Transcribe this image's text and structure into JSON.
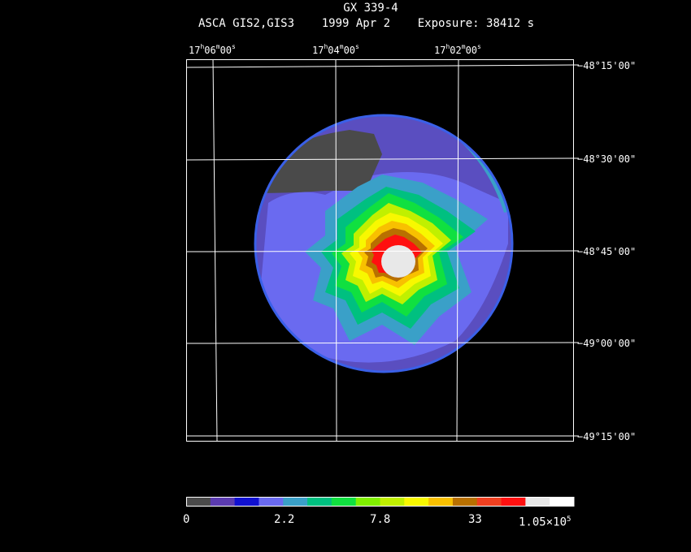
{
  "header": {
    "title": "GX 339-4",
    "instrument": "ASCA GIS2,GIS3",
    "date": "1999 Apr  2",
    "exposure": "Exposure: 38412 s"
  },
  "ra_labels": [
    {
      "h": "17",
      "m": "06",
      "s": "00",
      "hs": "h",
      "ms": "m",
      "ss": "s"
    },
    {
      "h": "17",
      "m": "04",
      "s": "00",
      "hs": "h",
      "ms": "m",
      "ss": "s"
    },
    {
      "h": "17",
      "m": "02",
      "s": "00",
      "hs": "h",
      "ms": "m",
      "ss": "s"
    }
  ],
  "dec_labels": [
    "−48°15'00\"",
    "−48°30'00\"",
    "−48°45'00\"",
    "−49°00'00\"",
    "−49°15'00\""
  ],
  "colorbar": {
    "colors": [
      "#4a4a4a",
      "#5b3bb0",
      "#1010d0",
      "#6a6af0",
      "#3aa0c8",
      "#00c080",
      "#10e040",
      "#80f000",
      "#c0f000",
      "#f8f800",
      "#f8c000",
      "#b87000",
      "#f04020",
      "#ff1010",
      "#e8e8e8",
      "#ffffff"
    ],
    "labels": [
      "0",
      "2.2",
      "7.8",
      "33"
    ],
    "max_mantissa": "1.05×10",
    "max_exp": "5"
  }
}
